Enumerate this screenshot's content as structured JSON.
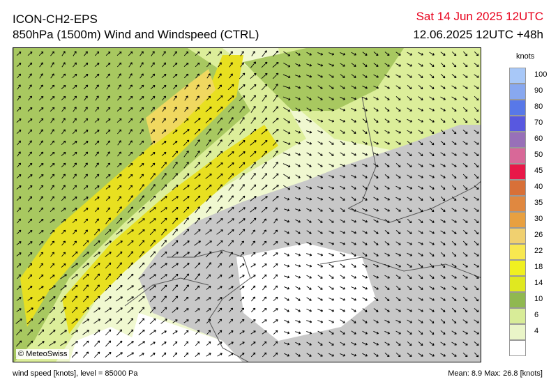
{
  "header": {
    "model": "ICON-CH2-EPS",
    "field": "850hPa (1500m) Wind and Windspeed (CTRL)",
    "valid_time": "Sat 14 Jun 2025 12UTC",
    "run_time": "12.06.2025 12UTC +48h"
  },
  "map": {
    "credit": "© MeteoSwiss",
    "colors": {
      "terrain": "#c8c8c8",
      "calm": "#ffffff",
      "light_green": "#f0f8d0",
      "yellow_green": "#dcee9a",
      "green": "#a8c860",
      "jet_yellow": "#e8e020",
      "jet_core": "#f0d860",
      "border": "#555555",
      "arrow": "#000000"
    }
  },
  "legend": {
    "unit": "knots",
    "levels": [
      {
        "label": "100",
        "color": "#a8c8f8"
      },
      {
        "label": "90",
        "color": "#88a8f0"
      },
      {
        "label": "80",
        "color": "#5878e8"
      },
      {
        "label": "70",
        "color": "#5858e0"
      },
      {
        "label": "60",
        "color": "#9870b8"
      },
      {
        "label": "50",
        "color": "#d86898"
      },
      {
        "label": "45",
        "color": "#e81848"
      },
      {
        "label": "40",
        "color": "#d87038"
      },
      {
        "label": "35",
        "color": "#e08840"
      },
      {
        "label": "30",
        "color": "#e8a040"
      },
      {
        "label": "26",
        "color": "#f0d070"
      },
      {
        "label": "22",
        "color": "#f8e850"
      },
      {
        "label": "18",
        "color": "#f0f020"
      },
      {
        "label": "14",
        "color": "#e0e820"
      },
      {
        "label": "10",
        "color": "#90b850"
      },
      {
        "label": "6",
        "color": "#d8ec98"
      },
      {
        "label": "4",
        "color": "#eaf5c8"
      },
      {
        "label": "",
        "color": "#ffffff"
      }
    ]
  },
  "footer": {
    "left": "wind speed [knots], level = 85000 Pa",
    "right": "Mean:   8.9 Max:  26.8 [knots]"
  }
}
